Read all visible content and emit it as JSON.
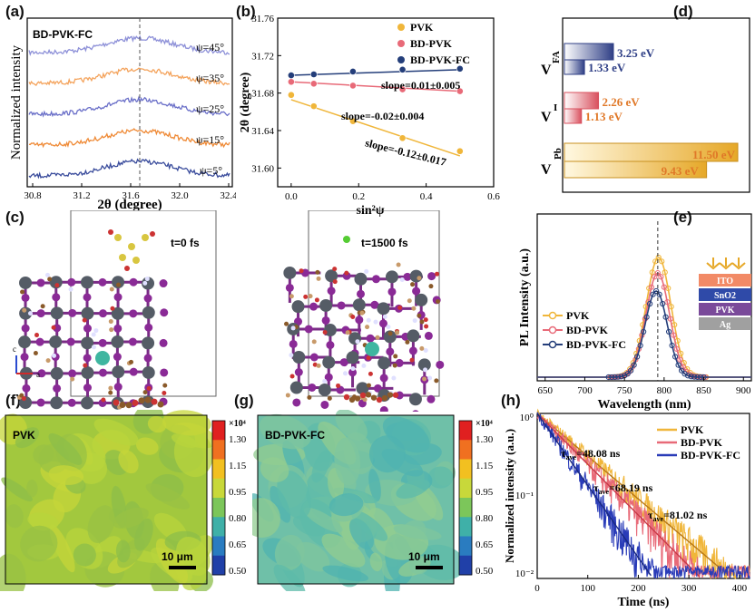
{
  "panels": {
    "a": "(a)",
    "b": "(b)",
    "c": "(c)",
    "d": "(d)",
    "e": "(e)",
    "f": "(f)",
    "g": "(g)",
    "h": "(h)"
  },
  "colors": {
    "pvk": "#f0b63a",
    "bd_pvk": "#e86a78",
    "bd_pvk_fc": "#243e7a",
    "psi45": "#8d90d8",
    "psi35": "#f4a35c",
    "psi25": "#6a6fc8",
    "psi15": "#ef8a36",
    "psi5": "#3a4c9c"
  },
  "panel_a": {
    "sample": "BD-PVK-FC",
    "ylabel": "Normalized intensity",
    "xlabel": "2θ (degree)",
    "xticks": [
      "30.8",
      "31.2",
      "31.6",
      "32.0",
      "32.4"
    ],
    "curves": [
      {
        "label": "ψ=45°"
      },
      {
        "label": "ψ=35°"
      },
      {
        "label": "ψ=25°"
      },
      {
        "label": "ψ=15°"
      },
      {
        "label": "ψ=5°"
      }
    ]
  },
  "chart_data": [
    {
      "type": "scatter",
      "panel": "b",
      "xlabel": "sin²ψ",
      "ylabel": "2θ (degree)",
      "xlim": [
        -0.04,
        0.6
      ],
      "ylim": [
        31.58,
        31.76
      ],
      "xticks": [
        "0.0",
        "0.2",
        "0.4",
        "0.6"
      ],
      "yticks": [
        "31.60",
        "31.64",
        "31.68",
        "31.72",
        "31.76"
      ],
      "legend": [
        "PVK",
        "BD-PVK",
        "BD-PVK-FC"
      ],
      "series": [
        {
          "name": "PVK",
          "x": [
            0.0,
            0.067,
            0.183,
            0.33,
            0.5
          ],
          "y": [
            31.678,
            31.666,
            31.65,
            31.632,
            31.618
          ],
          "fit": [
            31.673,
            31.613
          ],
          "slope": "slope=-0.12±0.017"
        },
        {
          "name": "BD-PVK",
          "x": [
            0.0,
            0.067,
            0.183,
            0.33,
            0.5
          ],
          "y": [
            31.692,
            31.69,
            31.688,
            31.684,
            31.682
          ],
          "fit": [
            31.692,
            31.682
          ],
          "slope": "slope=-0.02±0.004"
        },
        {
          "name": "BD-PVK-FC",
          "x": [
            0.0,
            0.067,
            0.183,
            0.33,
            0.5
          ],
          "y": [
            31.699,
            31.7,
            31.703,
            31.705,
            31.706
          ],
          "fit": [
            31.699,
            31.705
          ],
          "slope": "slope=0.01±0.005"
        }
      ]
    },
    {
      "type": "bar",
      "panel": "d",
      "categories": [
        "V_FA",
        "V_I",
        "V_Pb"
      ],
      "series": [
        {
          "values": [
            3.25,
            2.26,
            11.5
          ],
          "labels": [
            "3.25 eV",
            "2.26 eV",
            "11.50 eV"
          ]
        },
        {
          "values": [
            1.33,
            1.13,
            9.43
          ],
          "labels": [
            "1.33 eV",
            "1.13 eV",
            "9.43 eV"
          ]
        }
      ]
    },
    {
      "type": "line",
      "panel": "e",
      "xlabel": "Wavelength (nm)",
      "ylabel": "PL Intensity (a.u.)",
      "xlim": [
        640,
        910
      ],
      "xticks": [
        "650",
        "700",
        "750",
        "800",
        "850",
        "900"
      ],
      "legend": [
        "PVK",
        "BD-PVK",
        "BD-PVK-FC"
      ],
      "series": [
        {
          "name": "PVK",
          "peak": 793,
          "width": 22,
          "amp": 1.0
        },
        {
          "name": "BD-PVK",
          "peak": 792,
          "width": 21,
          "amp": 0.87
        },
        {
          "name": "BD-PVK-FC",
          "peak": 790,
          "width": 20,
          "amp": 0.72
        }
      ],
      "device_layers": [
        "ITO",
        "SnO2",
        "PVK",
        "Ag"
      ]
    },
    {
      "type": "line",
      "panel": "h",
      "xlabel": "Time (ns)",
      "ylabel": "Normalized intensity (a.u.)",
      "yscale": "log",
      "xlim": [
        0,
        420
      ],
      "ylim": [
        0.008,
        1
      ],
      "xticks": [
        "0",
        "100",
        "200",
        "300",
        "400"
      ],
      "yticks": [
        "10⁰",
        "10⁻¹",
        "10⁻²"
      ],
      "legend": [
        "PVK",
        "BD-PVK",
        "BD-PVK-FC"
      ],
      "series": [
        {
          "name": "PVK",
          "tau_ns": 81.02,
          "label": "=81.02 ns"
        },
        {
          "name": "BD-PVK",
          "tau_ns": 68.19,
          "label": "=68.19 ns"
        },
        {
          "name": "BD-PVK-FC",
          "tau_ns": 48.08,
          "label": "=48.08 ns"
        }
      ]
    }
  ],
  "panel_c": {
    "time1": "t=0 fs",
    "time2": "t=1500 fs",
    "axis_c": "c",
    "axis_a": "a"
  },
  "maps": {
    "f_label": "PVK",
    "g_label": "BD-PVK-FC",
    "scale_bar": "10 μm",
    "colorbar_unit": "×10⁴",
    "colorbar_ticks": [
      "1.30",
      "1.15",
      "0.95",
      "0.80",
      "0.65",
      "0.50"
    ]
  }
}
